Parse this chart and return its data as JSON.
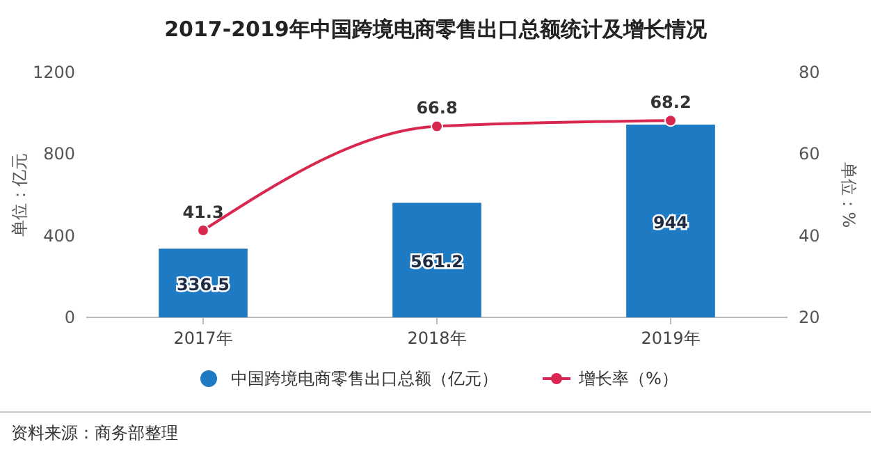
{
  "chart_data": {
    "type": "bar",
    "title": "2017-2019年中国跨境电商零售出口总额统计及增长情况",
    "categories": [
      "2017年",
      "2018年",
      "2019年"
    ],
    "series": [
      {
        "name": "中国跨境电商零售出口总额（亿元）",
        "color": "#1f7ac4",
        "values": [
          336.5,
          561.2,
          944
        ]
      },
      {
        "name": "增长率（%）",
        "type": "line",
        "axis": "y2",
        "color": "#d9284f",
        "values": [
          41.3,
          66.8,
          68.2
        ]
      }
    ],
    "ylabel": "单位：亿元",
    "y2label": "单位：%",
    "ylim": [
      0,
      1200
    ],
    "yticks": [
      0,
      400,
      800,
      1200
    ],
    "y2lim": [
      20,
      80
    ],
    "y2ticks": [
      20,
      40,
      60,
      80
    ],
    "data_labels": true,
    "marker": "circle",
    "legend": "bottom",
    "annotations": [
      "资料来源：商务部整理"
    ]
  }
}
